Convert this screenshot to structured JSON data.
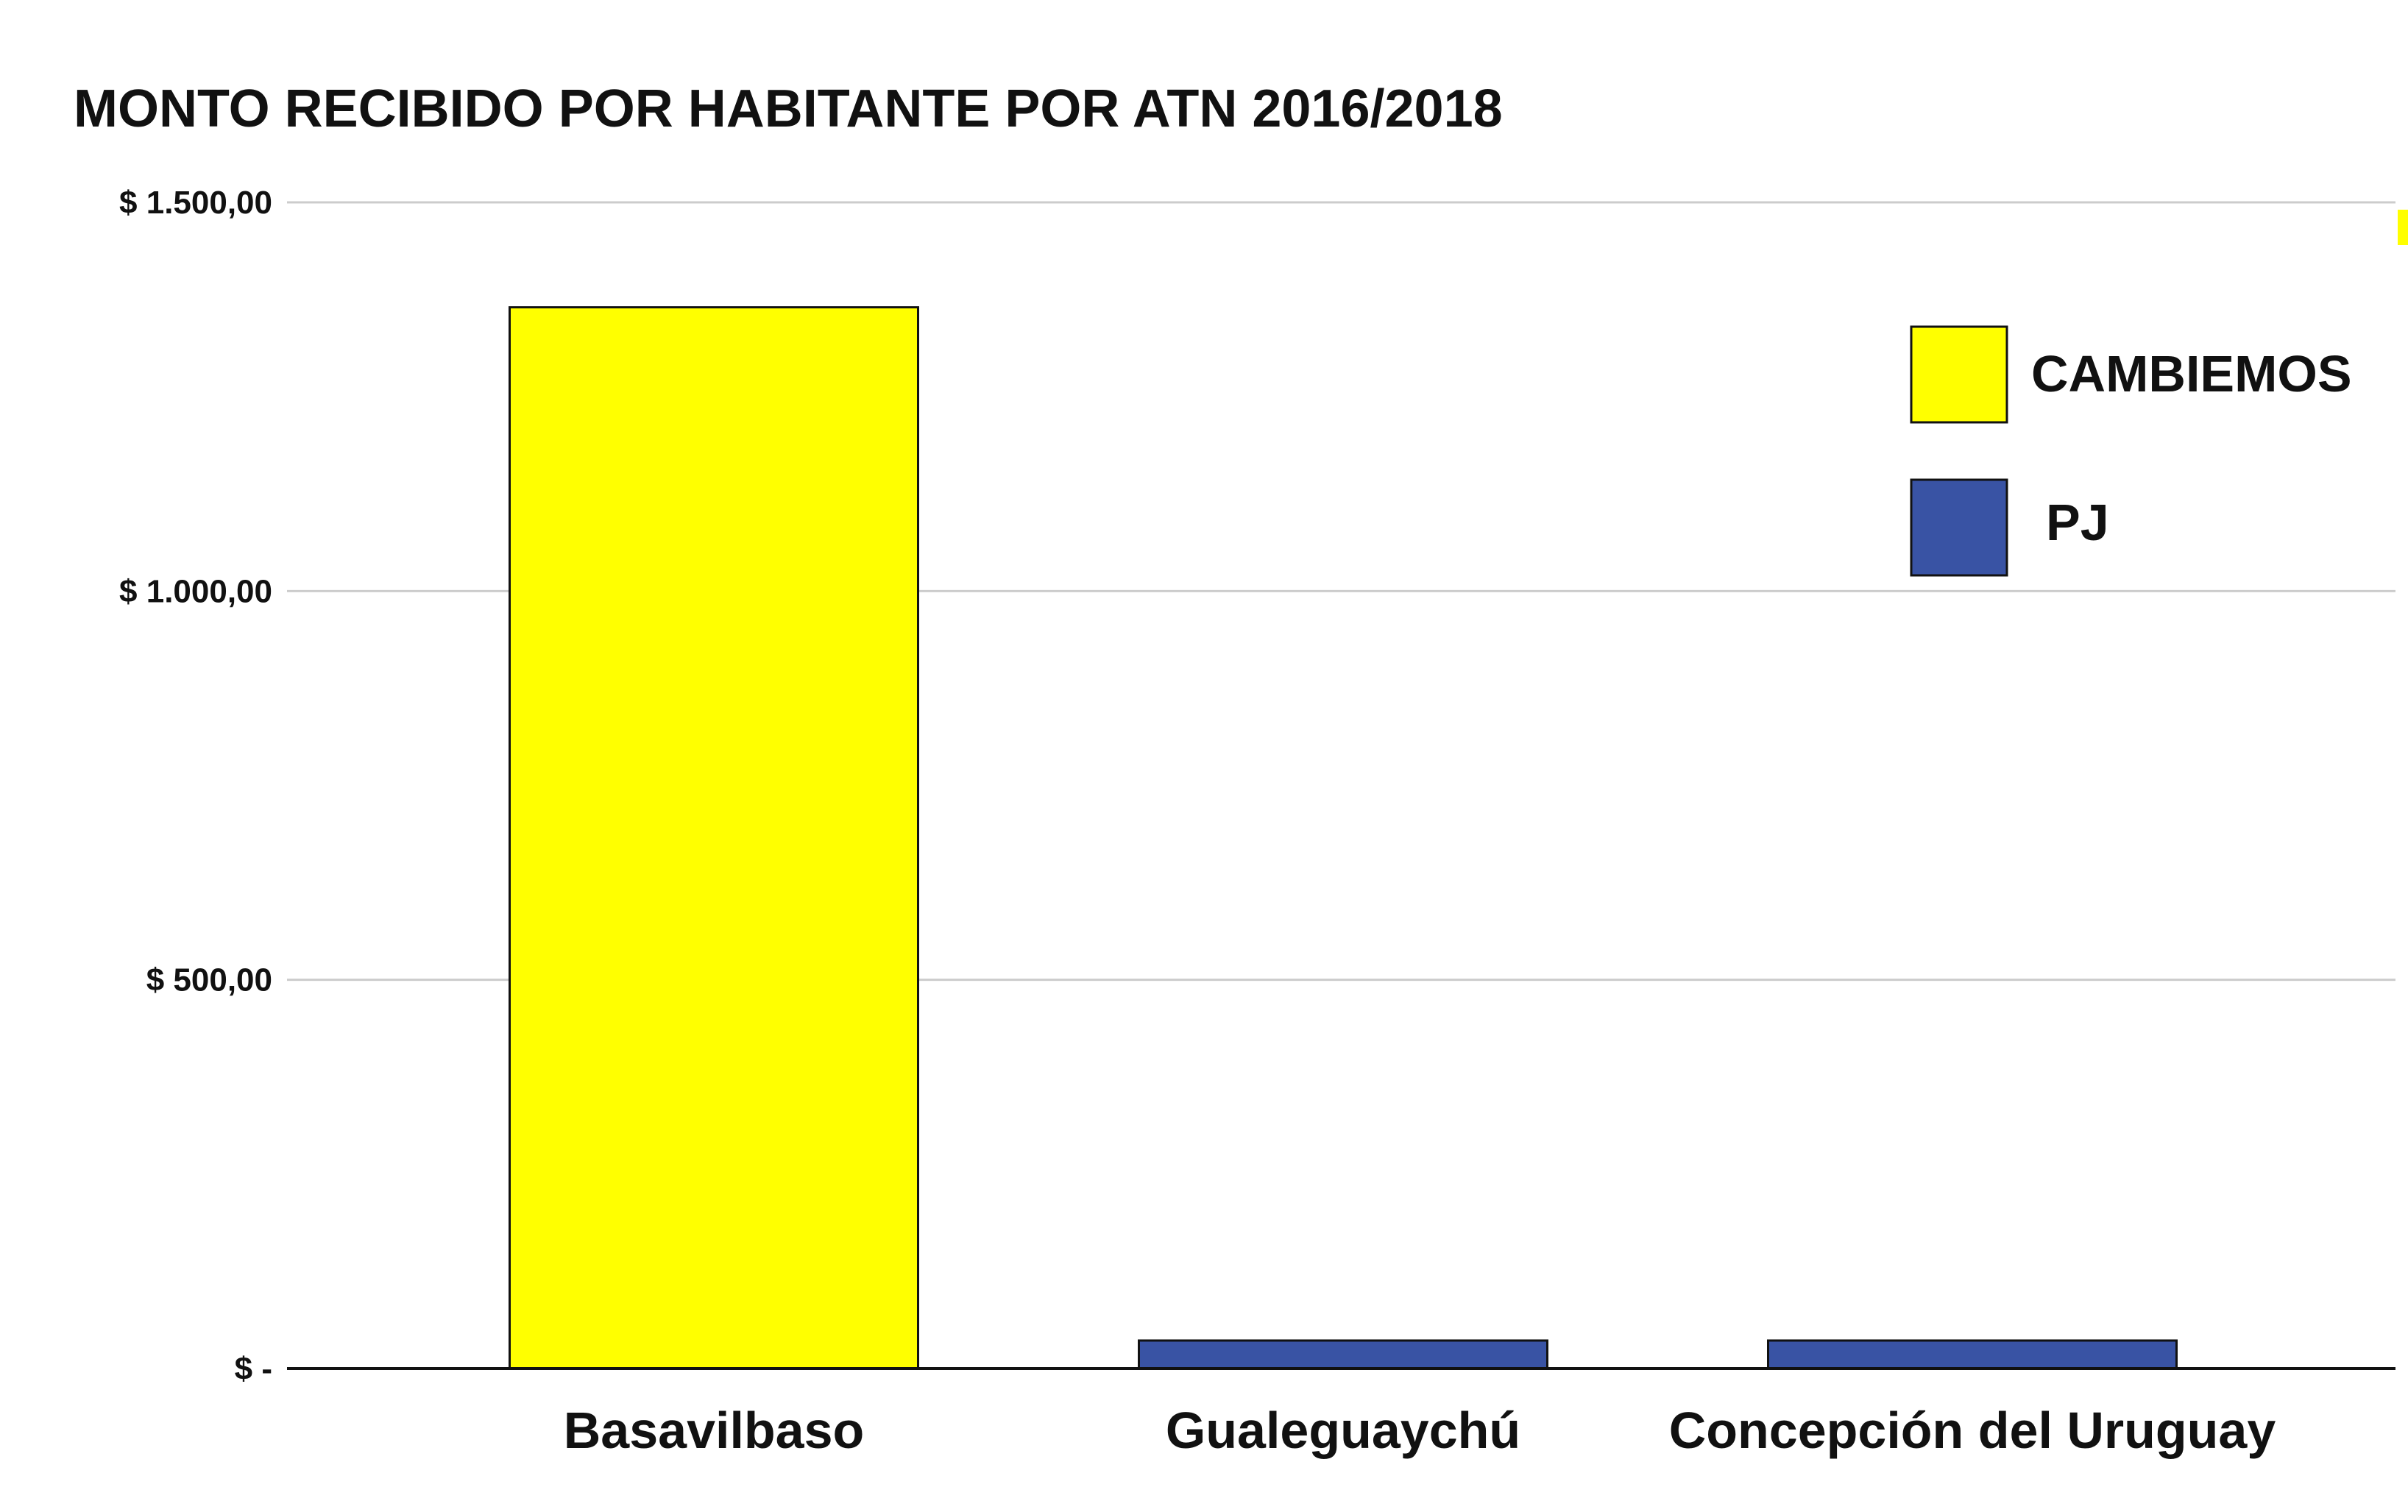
{
  "chart_data": {
    "type": "bar",
    "title": "MONTO RECIBIDO POR HABITANTE POR ATN 2016/2018",
    "categories": [
      "Basavilbaso",
      "Gualeguaychú",
      "Concepción del Uruguay"
    ],
    "values": [
      1365,
      36,
      36
    ],
    "bar_series": [
      "CAMBIEMOS",
      "PJ",
      "PJ"
    ],
    "ylim": [
      0,
      1500
    ],
    "yticks": [
      {
        "value": 0,
        "label": "$ -"
      },
      {
        "value": 500,
        "label": "$ 500,00"
      },
      {
        "value": 1000,
        "label": "$ 1.000,00"
      },
      {
        "value": 1500,
        "label": "$ 1.500,00"
      }
    ],
    "grid": true,
    "legend": {
      "placement": "top-right",
      "items": [
        {
          "name": "CAMBIEMOS",
          "color": "#ffff00"
        },
        {
          "name": "PJ",
          "color": "#3953a4"
        }
      ]
    },
    "colors": {
      "CAMBIEMOS": "#ffff00",
      "PJ": "#3953a4"
    }
  }
}
